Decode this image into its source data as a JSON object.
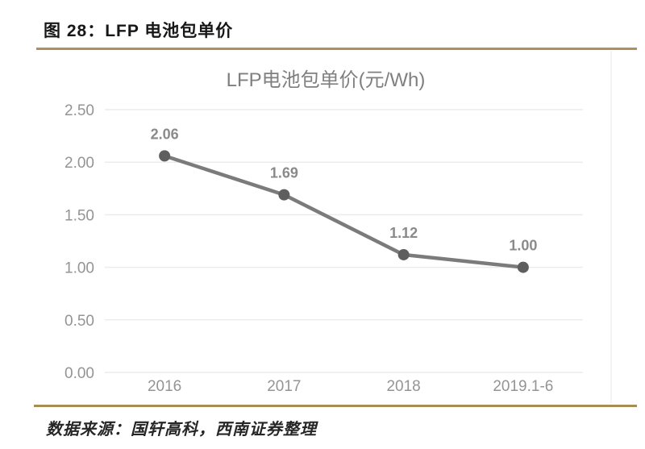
{
  "figure": {
    "caption": "图 28：LFP 电池包单价",
    "source": "数据来源：国轩高科，西南证券整理",
    "accent_color_top": "#b09058",
    "accent_color_bottom": "#a78d52"
  },
  "chart_data": {
    "type": "line",
    "title": "LFP电池包单价(元/Wh)",
    "categories": [
      "2016",
      "2017",
      "2018",
      "2019.1-6"
    ],
    "series": [
      {
        "name": "LFP电池包单价",
        "values": [
          2.06,
          1.69,
          1.12,
          1.0
        ]
      }
    ],
    "data_labels": [
      "2.06",
      "1.69",
      "1.12",
      "1.00"
    ],
    "ylim": [
      0,
      2.5
    ],
    "ytick_step": 0.5,
    "ytick_labels": [
      "0.00",
      "0.50",
      "1.00",
      "1.50",
      "2.00",
      "2.50"
    ],
    "grid": true,
    "legend": "none",
    "colors": {
      "line": "#7b7b7b",
      "marker": "#5e5e5e",
      "data_label": "#8a8a8a",
      "axis_text": "#949494",
      "title_text": "#7f7f7f",
      "gridline": "#ececec",
      "edge_line": "#f1f1f1"
    }
  }
}
